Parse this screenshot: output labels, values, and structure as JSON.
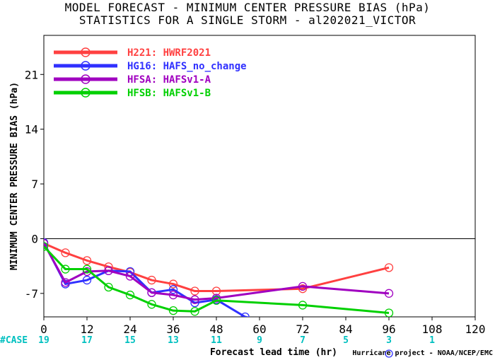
{
  "title_line1": "MODEL FORECAST - MINIMUM CENTER PRESSURE BIAS (hPa)",
  "title_line2": "STATISTICS FOR A SINGLE STORM - al202021_VICTOR",
  "footer": "Hurricane project - NOAA/NCEP/EMC",
  "case_label": "#CASE",
  "case_x": [
    0,
    12,
    24,
    36,
    48,
    60,
    72,
    84,
    96,
    108
  ],
  "case_counts": [
    "19",
    "17",
    "15",
    "13",
    "11",
    "9",
    "7",
    "5",
    "3",
    "1"
  ],
  "colors": {
    "case_label": "#00c0c0",
    "zero_line": "#000000"
  },
  "chart_data": {
    "type": "line",
    "title": "MODEL FORECAST - MINIMUM CENTER PRESSURE BIAS (hPa)",
    "subtitle": "STATISTICS FOR A SINGLE STORM - al202021_VICTOR",
    "xlabel": "Forecast lead time (hr)",
    "ylabel": "MINIMUM CENTER PRESSURE BIAS (hPa)",
    "xlim": [
      0,
      120
    ],
    "ylim": [
      -10,
      26
    ],
    "xticks": [
      0,
      12,
      24,
      36,
      48,
      60,
      72,
      84,
      96,
      108,
      120
    ],
    "yticks": [
      -7,
      0,
      7,
      14,
      21
    ],
    "legend_position": "top-left",
    "grid": false,
    "series": [
      {
        "name": "H221: HWRF2021",
        "color": "#ff4040",
        "x": [
          0,
          6,
          12,
          18,
          24,
          30,
          36,
          42,
          48,
          72,
          96
        ],
        "y": [
          -0.6,
          -1.8,
          -2.8,
          -3.6,
          -4.3,
          -5.3,
          -5.8,
          -6.7,
          -6.7,
          -6.4,
          -3.7
        ]
      },
      {
        "name": "HG16: HAFS_no_change",
        "color": "#3030ff",
        "x": [
          0,
          6,
          12,
          18,
          24,
          30,
          36,
          42,
          48,
          56,
          96
        ],
        "y": [
          -0.5,
          -5.8,
          -5.3,
          -4.1,
          -4.2,
          -6.9,
          -6.5,
          -8.2,
          -7.8,
          -10,
          -14
        ]
      },
      {
        "name": "HFSA: HAFSv1-A",
        "color": "#a000c0",
        "x": [
          0,
          6,
          12,
          18,
          24,
          30,
          36,
          42,
          48,
          72,
          96
        ],
        "y": [
          -0.6,
          -5.6,
          -4.2,
          -4.1,
          -4.8,
          -6.9,
          -7.2,
          -7.8,
          -7.6,
          -6.1,
          -7.0
        ]
      },
      {
        "name": "HFSB: HAFSv1-B",
        "color": "#00d000",
        "x": [
          0,
          6,
          12,
          18,
          24,
          30,
          36,
          42,
          48,
          72,
          96
        ],
        "y": [
          -1.0,
          -3.9,
          -3.9,
          -6.2,
          -7.2,
          -8.4,
          -9.2,
          -9.3,
          -7.9,
          -8.5,
          -9.5
        ]
      }
    ]
  }
}
